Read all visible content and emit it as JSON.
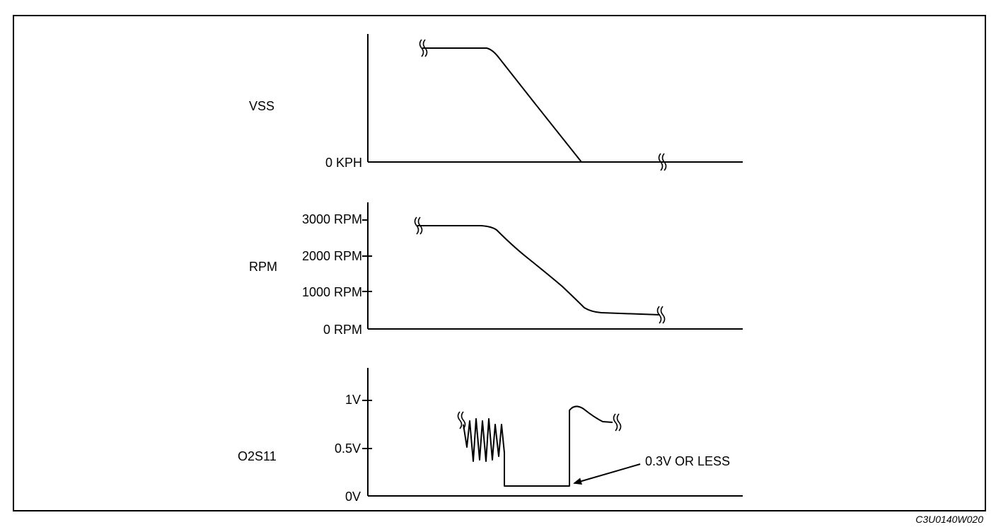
{
  "panels": {
    "vss": {
      "label": "VSS",
      "ticks": [
        "0 KPH"
      ]
    },
    "rpm": {
      "label": "RPM",
      "ticks": [
        "3000 RPM",
        "2000 RPM",
        "1000 RPM",
        "0 RPM"
      ]
    },
    "o2s": {
      "label": "O2S11",
      "ticks": [
        "1V",
        "0.5V",
        "0V"
      ]
    }
  },
  "annotation": {
    "text": "0.3V OR LESS"
  },
  "figure_code": "C3U0140W020"
}
